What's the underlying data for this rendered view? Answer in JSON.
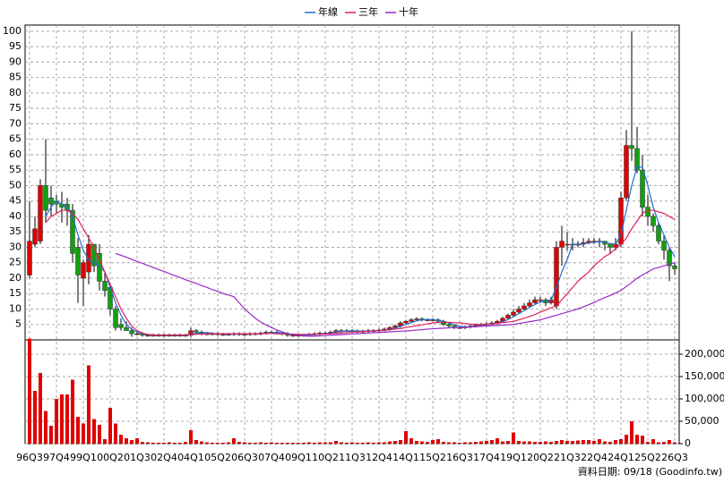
{
  "chart_data": {
    "type": "candlestick",
    "legend": "top",
    "grid": true,
    "up_color": "#e00000",
    "down_color": "#10a010",
    "categories": [
      "96Q3",
      null,
      null,
      null,
      null,
      "97Q4",
      null,
      null,
      null,
      null,
      "99Q1",
      null,
      null,
      null,
      null,
      "00Q2",
      null,
      null,
      null,
      null,
      "01Q3",
      null,
      null,
      null,
      null,
      "02Q4",
      null,
      null,
      null,
      null,
      "04Q1",
      null,
      null,
      null,
      null,
      "05Q2",
      null,
      null,
      null,
      null,
      "06Q3",
      null,
      null,
      null,
      null,
      "07Q4",
      null,
      null,
      null,
      null,
      "09Q1",
      null,
      null,
      null,
      null,
      "10Q2",
      null,
      null,
      null,
      null,
      "11Q3",
      null,
      null,
      null,
      null,
      "12Q4",
      null,
      null,
      null,
      null,
      "14Q1",
      null,
      null,
      null,
      null,
      "15Q2",
      null,
      null,
      null,
      null,
      "16Q3",
      null,
      null,
      null,
      null,
      "17Q4",
      null,
      null,
      null,
      null,
      "19Q1",
      null,
      null,
      null,
      null,
      "20Q2",
      null,
      null,
      null,
      null,
      "21Q3",
      null,
      null,
      null,
      null,
      "22Q4",
      null,
      null,
      null,
      null,
      "24Q1",
      null,
      null,
      null,
      null,
      "25Q2",
      null,
      null,
      null,
      null,
      "26Q3"
    ],
    "open": [
      21,
      31,
      32,
      50,
      46,
      45,
      44,
      44,
      42,
      30,
      20,
      22,
      31,
      28,
      19,
      17,
      10,
      5,
      4,
      3,
      2,
      2,
      1.5,
      1.5,
      1.5,
      1.5,
      1.5,
      1.5,
      1.5,
      1.5,
      1.5,
      3,
      2.5,
      2,
      2,
      2,
      1.8,
      1.8,
      1.8,
      2,
      1.8,
      1.8,
      2,
      2,
      2.2,
      2.5,
      2.5,
      2.2,
      2,
      1.5,
      1.5,
      1.5,
      1.5,
      1.8,
      2,
      2.2,
      2.2,
      2.5,
      3,
      3,
      3,
      2.8,
      2.8,
      2.8,
      3,
      3,
      3.2,
      3.5,
      4,
      4.5,
      5.5,
      6,
      6.5,
      6.8,
      6.5,
      6.5,
      6.5,
      6,
      5,
      4.5,
      4,
      4,
      4.2,
      4.5,
      4.8,
      5,
      5.2,
      5.5,
      6,
      7,
      8,
      9,
      10,
      11,
      12,
      13,
      13,
      12,
      11,
      30,
      31,
      31,
      31,
      31,
      31.5,
      32,
      32,
      32,
      31,
      30,
      31,
      46,
      63,
      62,
      55,
      43,
      40,
      37,
      32,
      29,
      24
    ],
    "high": [
      45,
      40,
      52,
      65,
      50,
      47,
      48,
      46,
      44,
      33,
      26,
      34,
      31,
      31,
      22,
      18,
      11,
      7,
      6,
      4,
      3,
      2.5,
      2,
      2,
      2,
      2,
      2,
      2,
      2,
      2,
      4,
      3.5,
      3,
      2.5,
      2.5,
      2.5,
      2.3,
      2.3,
      2.5,
      2.5,
      2.3,
      2.5,
      2.5,
      2.7,
      3,
      3,
      3,
      2.7,
      2.5,
      2,
      2,
      2,
      2.3,
      2.5,
      2.7,
      2.7,
      3,
      3.5,
      3.5,
      3.5,
      3.5,
      3.3,
      3.3,
      3.5,
      3.5,
      3.7,
      4,
      4.5,
      5,
      6,
      6.5,
      7,
      7.3,
      7.3,
      7,
      7,
      7,
      6.5,
      5.5,
      5,
      4.5,
      4.7,
      5,
      5.3,
      5.5,
      5.7,
      6,
      6.5,
      7.5,
      8.5,
      10,
      11,
      12,
      13,
      14,
      14,
      13.5,
      14,
      32,
      37,
      35,
      33,
      32,
      33,
      33,
      33,
      33,
      32,
      31,
      33,
      48,
      68,
      100,
      69,
      60,
      47,
      41,
      38,
      34,
      30,
      25
    ],
    "low": [
      20,
      30,
      31,
      38,
      40,
      41,
      38,
      37,
      25,
      12,
      11,
      18,
      22,
      16,
      14,
      8,
      3,
      3,
      3,
      1,
      1.5,
      1,
      1,
      1,
      1,
      1,
      1,
      1,
      1,
      1,
      1,
      2,
      1.5,
      1.5,
      1.5,
      1.3,
      1.3,
      1.3,
      1.3,
      1.3,
      1.3,
      1.3,
      1.5,
      1.5,
      1.7,
      2,
      1.7,
      1.5,
      1,
      1,
      1,
      1,
      1,
      1.3,
      1.5,
      1.7,
      1.7,
      2,
      2.5,
      2.5,
      2.3,
      2.3,
      2.3,
      2.3,
      2.5,
      2.5,
      2.7,
      3,
      3.5,
      4,
      5,
      5.5,
      6,
      6,
      6,
      6,
      5.5,
      4.5,
      4,
      3.5,
      3.5,
      3.5,
      3.7,
      4,
      4.3,
      4.5,
      4.7,
      5,
      5.5,
      6.5,
      7.5,
      8.5,
      9.5,
      10.5,
      11.5,
      12,
      11,
      11.5,
      10,
      24,
      29,
      29,
      30,
      30,
      31,
      31,
      30,
      29,
      28,
      29,
      30,
      45,
      58,
      54,
      40,
      37,
      35,
      31,
      26,
      19,
      21
    ],
    "close": [
      32,
      36,
      50,
      42,
      44,
      44,
      43,
      42,
      28,
      21,
      25,
      31,
      24,
      19,
      16,
      10,
      4,
      4,
      3,
      2,
      2,
      1.5,
      1.5,
      1.5,
      1.5,
      1.5,
      1.5,
      1.5,
      1.5,
      1.5,
      3,
      2.5,
      2,
      2,
      2,
      1.8,
      1.8,
      1.8,
      2,
      1.8,
      1.8,
      2,
      2,
      2.2,
      2.5,
      2.5,
      2.2,
      2,
      1.5,
      1.5,
      1.5,
      1.5,
      1.8,
      2,
      2.2,
      2.2,
      2.5,
      3,
      3,
      3,
      2.8,
      2.8,
      2.8,
      3,
      3,
      3.2,
      3.5,
      4,
      4.5,
      5.5,
      6,
      6.5,
      6.8,
      6.5,
      6.5,
      6.5,
      6,
      5,
      4.5,
      4,
      4,
      4.2,
      4.5,
      4.8,
      5,
      5.2,
      5.5,
      6,
      7,
      8,
      9,
      10,
      11,
      12,
      13,
      13,
      12,
      13,
      30,
      32,
      31,
      31,
      31,
      31.5,
      32,
      32,
      32,
      31,
      30,
      31,
      46,
      63,
      62,
      55,
      43,
      40,
      37,
      32,
      29,
      24,
      23
    ],
    "series": [
      {
        "name": "年線",
        "color": "#1f6fd0",
        "values": [
          null,
          null,
          null,
          40,
          43,
          45,
          44,
          43,
          40,
          34,
          29,
          26,
          25,
          24,
          22,
          17,
          12,
          8,
          5,
          3.5,
          2.5,
          2,
          1.7,
          1.6,
          1.5,
          1.5,
          1.5,
          1.5,
          1.5,
          1.5,
          1.9,
          2.1,
          2.3,
          2.4,
          2.1,
          2,
          1.9,
          1.8,
          1.9,
          1.9,
          1.9,
          1.9,
          1.9,
          2,
          2.2,
          2.3,
          2.4,
          2.3,
          2,
          1.8,
          1.6,
          1.5,
          1.6,
          1.7,
          1.9,
          2,
          2.2,
          2.5,
          2.7,
          2.9,
          2.9,
          2.9,
          2.8,
          2.9,
          2.9,
          3,
          3.2,
          3.4,
          3.8,
          4.4,
          5,
          5.6,
          6.2,
          6.5,
          6.6,
          6.6,
          6.4,
          6,
          5.5,
          4.9,
          4.4,
          4.2,
          4.2,
          4.4,
          4.6,
          4.9,
          5.1,
          5.4,
          5.9,
          6.6,
          7.5,
          8.5,
          9.5,
          10.5,
          11.5,
          12.3,
          12.5,
          12.8,
          17,
          22,
          26,
          31,
          31,
          31,
          31.5,
          31.6,
          31.8,
          31.7,
          31.2,
          31,
          34,
          42,
          50,
          56,
          56,
          50,
          43,
          38,
          34,
          30,
          27
        ]
      },
      {
        "name": "三年",
        "color": "#e0205a",
        "values": [
          null,
          null,
          null,
          38,
          40,
          41,
          42,
          42,
          41,
          39,
          36,
          33,
          30,
          26,
          22,
          18,
          14,
          10,
          7,
          4.5,
          3,
          2.2,
          1.8,
          1.6,
          1.6,
          1.6,
          1.6,
          1.6,
          1.6,
          1.6,
          1.7,
          1.8,
          1.9,
          2,
          2,
          2,
          2,
          2,
          2,
          2,
          2,
          2,
          2,
          2,
          2.1,
          2.1,
          2,
          2,
          1.9,
          1.9,
          1.8,
          1.8,
          1.8,
          1.8,
          1.9,
          1.9,
          2,
          2.1,
          2.2,
          2.3,
          2.5,
          2.6,
          2.7,
          2.8,
          2.9,
          3,
          3.1,
          3.3,
          3.5,
          3.7,
          4,
          4.3,
          4.6,
          4.9,
          5.2,
          5.5,
          5.6,
          5.7,
          5.7,
          5.6,
          5.5,
          5.3,
          5.1,
          5,
          5,
          5,
          5.2,
          5.4,
          5.6,
          5.8,
          6,
          6.5,
          7,
          7.6,
          8.2,
          9,
          9.7,
          10.4,
          11,
          13,
          15,
          17,
          19,
          20.5,
          22,
          24,
          25.5,
          27,
          28,
          29.5,
          31,
          33,
          36,
          38.5,
          41,
          42,
          42,
          41.5,
          41,
          40,
          39
        ]
      },
      {
        "name": "十年",
        "color": "#9a28c8",
        "values": [
          null,
          null,
          null,
          null,
          null,
          null,
          null,
          null,
          null,
          null,
          null,
          null,
          null,
          null,
          null,
          null,
          28,
          27.4,
          26.8,
          26.1,
          25.4,
          24.8,
          24.1,
          23.5,
          22.8,
          22.2,
          21.5,
          20.8,
          20.2,
          19.5,
          18.9,
          18.3,
          17.6,
          17,
          16.3,
          15.7,
          15,
          14.5,
          14,
          12,
          10,
          8.5,
          7,
          5.8,
          4.8,
          4,
          3.2,
          2.6,
          2,
          1.7,
          1.5,
          1.3,
          1.2,
          1.2,
          1.3,
          1.4,
          1.5,
          1.6,
          1.7,
          1.8,
          1.9,
          2,
          2.1,
          2.2,
          2.3,
          2.4,
          2.5,
          2.6,
          2.7,
          2.8,
          2.9,
          3,
          3.2,
          3.3,
          3.5,
          3.6,
          3.7,
          3.8,
          3.9,
          4,
          4,
          4.1,
          4.2,
          4.3,
          4.4,
          4.5,
          4.6,
          4.7,
          4.8,
          4.9,
          5,
          5.3,
          5.6,
          5.9,
          6.2,
          6.5,
          7,
          7.5,
          8,
          8.5,
          9,
          9.5,
          10,
          10.7,
          11.4,
          12.1,
          13,
          13.7,
          14.4,
          15.2,
          16,
          17.3,
          18.6,
          20,
          21,
          22,
          23,
          23.5,
          24,
          24.5,
          25
        ]
      }
    ],
    "volume": {
      "axis": "y2",
      "color": "#e00000",
      "values": [
        235000,
        118000,
        158000,
        73000,
        40000,
        100000,
        110000,
        110000,
        143000,
        60000,
        45000,
        175000,
        55000,
        42000,
        10000,
        80000,
        45000,
        20000,
        12000,
        8000,
        12000,
        4000,
        3000,
        2000,
        2000,
        2000,
        3000,
        2000,
        2000,
        4000,
        30000,
        8000,
        5000,
        3000,
        2000,
        2000,
        2000,
        3000,
        12000,
        4000,
        3000,
        2000,
        2000,
        3000,
        2000,
        3000,
        2000,
        2000,
        2000,
        2000,
        2000,
        2000,
        3000,
        2000,
        3000,
        3000,
        3000,
        6000,
        3000,
        2000,
        3000,
        2000,
        2000,
        3000,
        2000,
        3000,
        3000,
        5000,
        6000,
        8000,
        28000,
        12000,
        6000,
        5000,
        4000,
        8000,
        10000,
        4000,
        3000,
        3000,
        2000,
        3000,
        3000,
        4000,
        5000,
        6000,
        8000,
        12000,
        5000,
        6000,
        25000,
        6000,
        5000,
        5000,
        4000,
        4000,
        5000,
        4000,
        6000,
        8000,
        6000,
        6000,
        7000,
        8000,
        8000,
        6000,
        10000,
        5000,
        4000,
        8000,
        10000,
        20000,
        50000,
        20000,
        18000,
        4000,
        10000,
        3000,
        4000,
        8000,
        3000
      ]
    },
    "ylim": [
      0,
      102
    ],
    "yticks": [
      5,
      10,
      15,
      20,
      25,
      30,
      35,
      40,
      45,
      50,
      55,
      60,
      65,
      70,
      75,
      80,
      85,
      90,
      95,
      100
    ],
    "y2lim": [
      0,
      232000
    ],
    "y2ticks": [
      0,
      {
        "value": 50000,
        "label": "50,000"
      },
      {
        "value": 100000,
        "label": "100,000"
      },
      {
        "value": 150000,
        "label": "150,000"
      },
      {
        "value": 200000,
        "label": "200,000"
      }
    ]
  },
  "source": "資料日期: 09/18 (Goodinfo.tw)"
}
